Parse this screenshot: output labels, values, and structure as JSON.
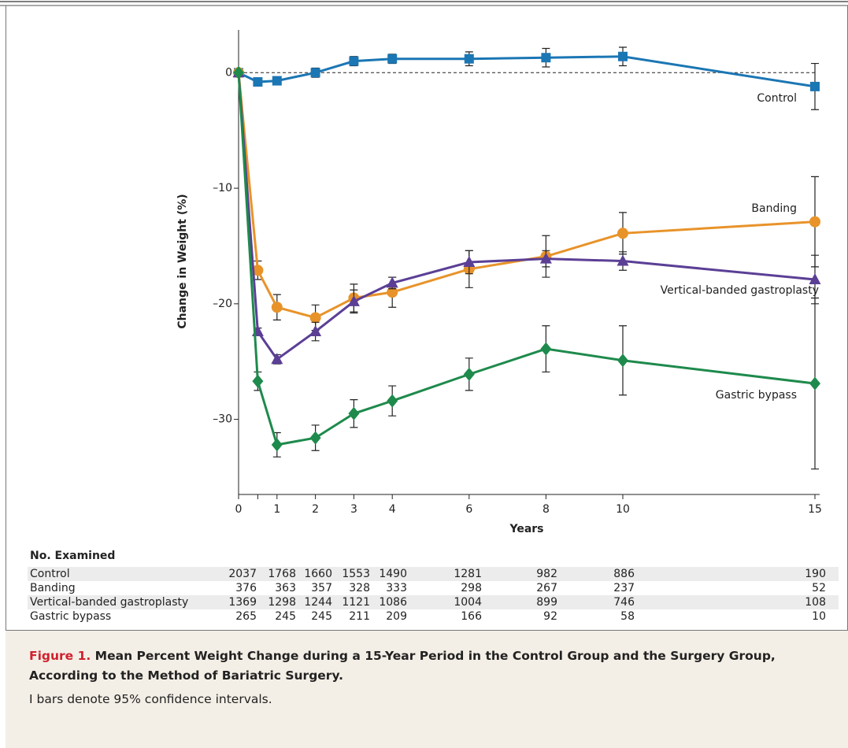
{
  "chart_data": {
    "type": "line",
    "y_label": "Change in Weight (%)",
    "x_label": "Years",
    "xlim": [
      0,
      15
    ],
    "ylim": [
      -36.5,
      3.7
    ],
    "xticks": [
      0,
      1,
      2,
      3,
      4,
      6,
      8,
      10,
      15
    ],
    "minor_xticks": [
      0.5
    ],
    "yticks": [
      {
        "value": -30,
        "label": "–30"
      },
      {
        "value": -20,
        "label": "–20"
      },
      {
        "value": -10,
        "label": "–10"
      },
      0
    ],
    "reference_line": 0,
    "x": [
      0,
      0.5,
      1,
      2,
      3,
      4,
      6,
      8,
      10,
      15
    ],
    "series": [
      {
        "name": "Control",
        "color": "#1b76b4",
        "marker": "square",
        "values": [
          0,
          -0.8,
          -0.7,
          0,
          1.0,
          1.2,
          1.2,
          1.3,
          1.4,
          -1.2
        ],
        "errors": [
          0,
          0.3,
          0.3,
          0.4,
          0.4,
          0.4,
          0.6,
          0.8,
          0.8,
          2.0
        ]
      },
      {
        "name": "Banding",
        "color": "#e8932a",
        "marker": "circle",
        "values": [
          0,
          -17.1,
          -20.3,
          -21.2,
          -19.5,
          -19.0,
          -17.0,
          -15.9,
          -13.9,
          -12.9
        ],
        "errors": [
          0,
          0.8,
          1.1,
          1.1,
          1.2,
          1.3,
          1.6,
          1.8,
          1.8,
          3.9
        ]
      },
      {
        "name": "Vertical-banded gastroplasty",
        "color": "#5b3f95",
        "marker": "triangle",
        "values": [
          0,
          -22.4,
          -24.8,
          -22.4,
          -19.8,
          -18.2,
          -16.4,
          -16.1,
          -16.3,
          -17.9
        ],
        "errors": [
          0,
          0.3,
          0.4,
          0.8,
          1.0,
          0.5,
          1.0,
          0.7,
          0.8,
          2.1
        ]
      },
      {
        "name": "Gastric bypass",
        "color": "#1e8a4c",
        "marker": "diamond",
        "values": [
          0,
          -26.7,
          -32.2,
          -31.6,
          -29.5,
          -28.4,
          -26.1,
          -23.9,
          -24.9,
          -26.9
        ],
        "errors": [
          0,
          0.8,
          1.05,
          1.1,
          1.2,
          1.3,
          1.4,
          2.0,
          3.0,
          7.4
        ]
      }
    ],
    "table": {
      "title": "No. Examined",
      "rows": [
        {
          "name": "Control",
          "counts": [
            2037,
            1768,
            1660,
            1553,
            1490,
            1281,
            982,
            886,
            190
          ]
        },
        {
          "name": "Banding",
          "counts": [
            376,
            363,
            357,
            328,
            333,
            298,
            267,
            237,
            52
          ]
        },
        {
          "name": "Vertical-banded gastroplasty",
          "counts": [
            1369,
            1298,
            1244,
            1121,
            1086,
            1004,
            899,
            746,
            108
          ]
        },
        {
          "name": "Gastric bypass",
          "counts": [
            265,
            245,
            245,
            211,
            209,
            166,
            92,
            58,
            10
          ]
        }
      ]
    }
  },
  "caption": {
    "label": "Figure 1.",
    "title": "Mean Percent Weight Change during a 15-Year Period in the Control Group and the Surgery Group, According to the Method of Bariatric Surgery.",
    "note": "I bars denote 95% confidence intervals."
  }
}
